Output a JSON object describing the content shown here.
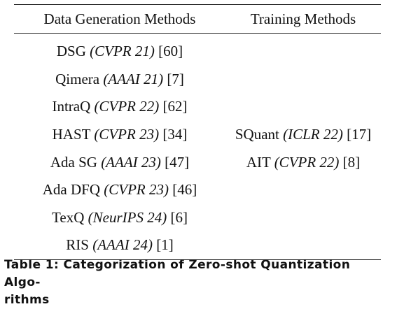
{
  "table": {
    "headers": [
      "Data Generation Methods",
      "Training Methods"
    ],
    "rows": [
      {
        "data_gen": {
          "name": "DSG",
          "venue": "(CVPR 21)",
          "ref": "[60]"
        },
        "training": null
      },
      {
        "data_gen": {
          "name": "Qimera",
          "venue": "(AAAI 21)",
          "ref": "[7]"
        },
        "training": null
      },
      {
        "data_gen": {
          "name": "IntraQ",
          "venue": "(CVPR 22)",
          "ref": "[62]"
        },
        "training": null
      },
      {
        "data_gen": {
          "name": "HAST",
          "venue": "(CVPR 23)",
          "ref": "[34]"
        },
        "training": {
          "name": "SQuant",
          "venue": "(ICLR 22)",
          "ref": "[17]"
        }
      },
      {
        "data_gen": {
          "name": "Ada SG",
          "venue": "(AAAI 23)",
          "ref": "[47]"
        },
        "training": {
          "name": "AIT",
          "venue": "(CVPR 22)",
          "ref": "[8]"
        }
      },
      {
        "data_gen": {
          "name": "Ada DFQ",
          "venue": "(CVPR 23)",
          "ref": "[46]"
        },
        "training": null
      },
      {
        "data_gen": {
          "name": "TexQ",
          "venue": "(NeurIPS 24)",
          "ref": "[6]"
        },
        "training": null
      },
      {
        "data_gen": {
          "name": "RIS",
          "venue": "(AAAI 24)",
          "ref": "[1]"
        },
        "training": null
      }
    ]
  },
  "caption": {
    "line1": "Table 1: Categorization of Zero-shot Quantization Algo-",
    "line2": "rithms"
  }
}
